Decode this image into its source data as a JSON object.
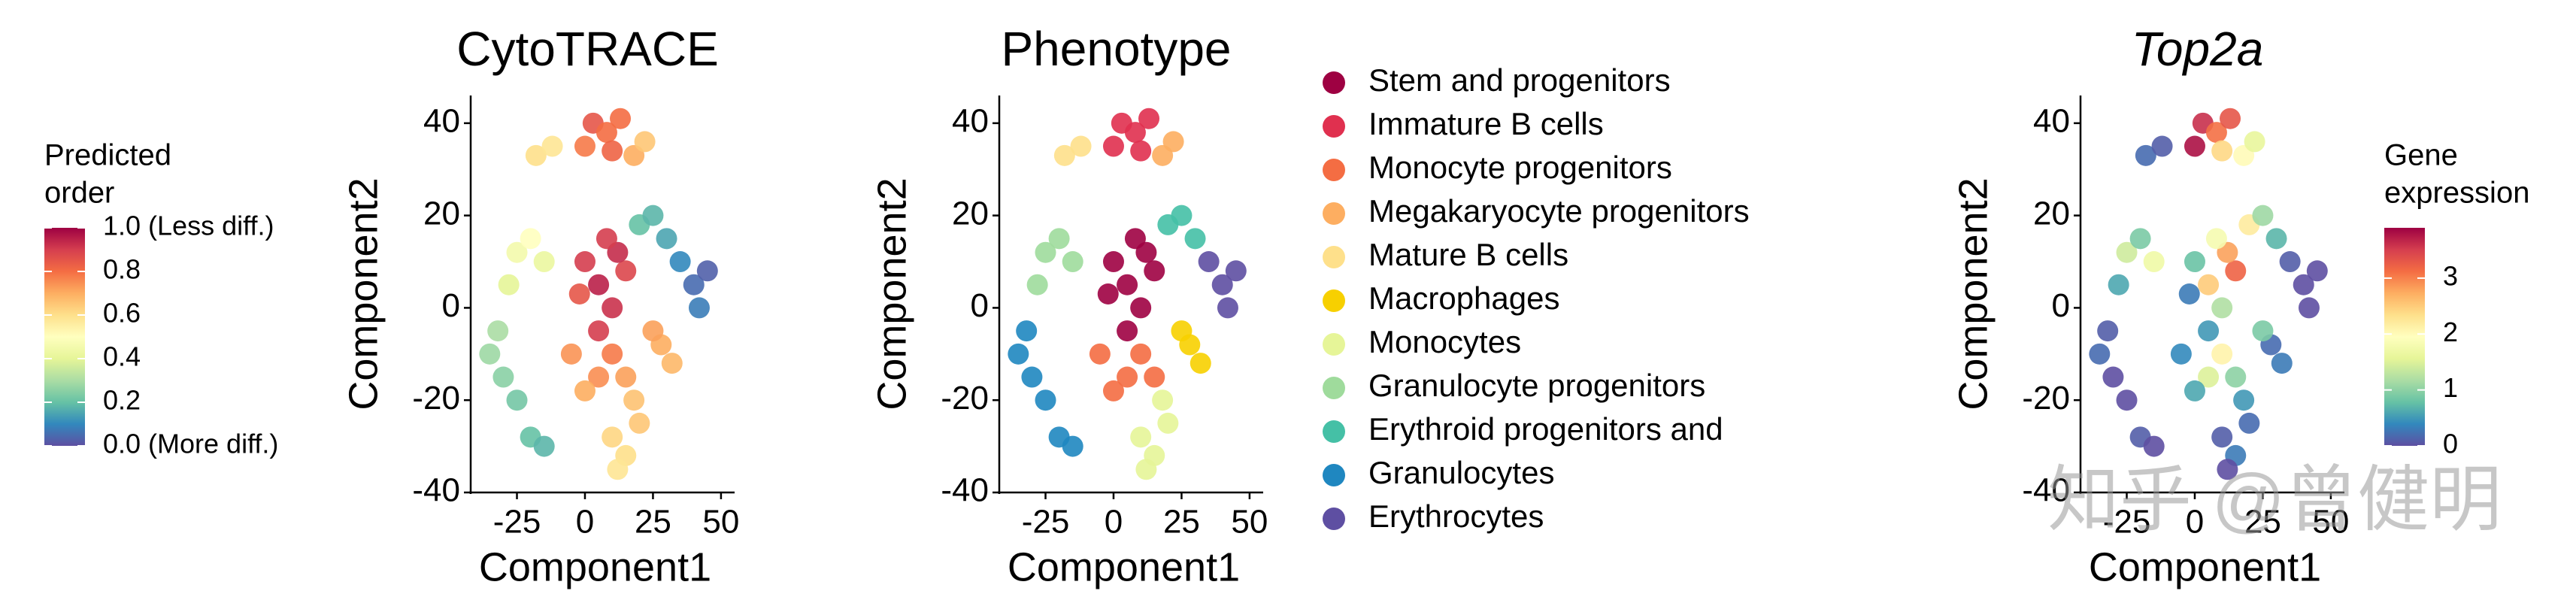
{
  "watermark": "知乎 @曾健明",
  "chart_data": [
    {
      "type": "scatter",
      "title": "CytoTRACE",
      "x_label": "Component1",
      "y_label": "Component2",
      "xlim": [
        -42,
        55
      ],
      "ylim": [
        -40,
        46
      ],
      "xticks": [
        -25,
        0,
        25,
        50
      ],
      "yticks": [
        -40,
        -20,
        0,
        20,
        40
      ],
      "x": [
        5,
        10,
        0,
        15,
        5,
        12,
        -2,
        8,
        3,
        8,
        10,
        0,
        13,
        5,
        10,
        0,
        15,
        -5,
        18,
        22,
        -18,
        -12,
        28,
        32,
        25,
        10,
        15,
        20,
        12,
        18,
        -25,
        -20,
        -15,
        -28,
        20,
        25,
        30,
        -32,
        -30,
        -25,
        -20,
        -15,
        -35,
        40,
        45,
        42,
        35
      ],
      "y": [
        5,
        0,
        10,
        8,
        -5,
        12,
        3,
        15,
        40,
        38,
        34,
        35,
        41,
        -15,
        -10,
        -18,
        -15,
        -10,
        33,
        36,
        33,
        35,
        -8,
        -12,
        -5,
        -28,
        -32,
        -25,
        -35,
        -20,
        12,
        15,
        10,
        5,
        18,
        20,
        15,
        -5,
        -15,
        -20,
        -28,
        -30,
        -10,
        5,
        8,
        0,
        10
      ],
      "values": [
        0.95,
        0.92,
        0.9,
        0.88,
        0.9,
        0.93,
        0.85,
        0.9,
        0.85,
        0.8,
        0.82,
        0.78,
        0.8,
        0.75,
        0.78,
        0.7,
        0.72,
        0.74,
        0.7,
        0.65,
        0.6,
        0.58,
        0.7,
        0.68,
        0.72,
        0.62,
        0.6,
        0.65,
        0.58,
        0.66,
        0.45,
        0.5,
        0.42,
        0.4,
        0.2,
        0.18,
        0.15,
        0.3,
        0.25,
        0.22,
        0.2,
        0.18,
        0.28,
        0.05,
        0.03,
        0.08,
        0.1
      ],
      "colormap": [
        "#5e4fa2",
        "#3288bd",
        "#66c2a5",
        "#abdda4",
        "#e6f598",
        "#ffffbf",
        "#fee08b",
        "#fdae61",
        "#f46d43",
        "#d53e4f",
        "#9e0142"
      ],
      "clim": [
        0,
        1
      ],
      "colorbar_title": [
        "Predicted",
        "order"
      ],
      "colorbar_ticks": [
        {
          "value": 1,
          "label": "1.0 (Less diff.)"
        },
        {
          "value": 0.8,
          "label": "0.8"
        },
        {
          "value": 0.6,
          "label": "0.6"
        },
        {
          "value": 0.4,
          "label": "0.4"
        },
        {
          "value": 0.2,
          "label": "0.2"
        },
        {
          "value": 0,
          "label": "0.0 (More diff.)"
        }
      ]
    },
    {
      "type": "scatter",
      "title": "Phenotype",
      "x_label": "Component1",
      "y_label": "Component2",
      "xlim": [
        -42,
        55
      ],
      "ylim": [
        -40,
        46
      ],
      "xticks": [
        -25,
        0,
        25,
        50
      ],
      "yticks": [
        -40,
        -20,
        0,
        20,
        40
      ],
      "series": [
        {
          "name": "Stem and progenitors",
          "color": "#9e0142",
          "x": [
            5,
            10,
            0,
            15,
            5,
            12,
            -2,
            8
          ],
          "y": [
            5,
            0,
            10,
            8,
            -5,
            12,
            3,
            15
          ]
        },
        {
          "name": "Immature B cells",
          "color": "#e0304f",
          "x": [
            3,
            8,
            10,
            0,
            13
          ],
          "y": [
            40,
            38,
            34,
            35,
            41
          ]
        },
        {
          "name": "Monocyte progenitors",
          "color": "#f46d43",
          "x": [
            5,
            10,
            0,
            15,
            -5
          ],
          "y": [
            -15,
            -10,
            -18,
            -15,
            -10
          ]
        },
        {
          "name": "Megakaryocyte progenitors",
          "color": "#fdae61",
          "x": [
            18,
            22
          ],
          "y": [
            33,
            36
          ]
        },
        {
          "name": "Mature B cells",
          "color": "#fee08b",
          "x": [
            -18,
            -12
          ],
          "y": [
            33,
            35
          ]
        },
        {
          "name": "Macrophages",
          "color": "#f7d000",
          "x": [
            28,
            32,
            25
          ],
          "y": [
            -8,
            -12,
            -5
          ]
        },
        {
          "name": "Monocytes",
          "color": "#e6f598",
          "x": [
            10,
            15,
            20,
            12,
            18
          ],
          "y": [
            -28,
            -32,
            -25,
            -35,
            -20
          ]
        },
        {
          "name": "Granulocyte progenitors",
          "color": "#9fdb9c",
          "x": [
            -25,
            -20,
            -15,
            -28
          ],
          "y": [
            12,
            15,
            10,
            5
          ]
        },
        {
          "name": "Erythroid progenitors and",
          "color": "#45c0a6",
          "x": [
            20,
            25,
            30
          ],
          "y": [
            18,
            20,
            15
          ]
        },
        {
          "name": "Granulocytes",
          "color": "#1f87c0",
          "x": [
            -32,
            -30,
            -25,
            -20,
            -15,
            -35
          ],
          "y": [
            -5,
            -15,
            -20,
            -28,
            -30,
            -10
          ]
        },
        {
          "name": "Erythrocytes",
          "color": "#5e4fa2",
          "x": [
            40,
            45,
            42,
            35
          ],
          "y": [
            5,
            8,
            0,
            10
          ]
        }
      ]
    },
    {
      "type": "scatter",
      "title": "Top2a",
      "x_label": "Component1",
      "y_label": "Component2",
      "xlim": [
        -42,
        55
      ],
      "ylim": [
        -40,
        46
      ],
      "xticks": [
        -25,
        0,
        25,
        50
      ],
      "yticks": [
        -40,
        -20,
        0,
        20,
        40
      ],
      "x": [
        5,
        10,
        0,
        15,
        5,
        12,
        -2,
        8,
        3,
        8,
        10,
        0,
        13,
        5,
        10,
        0,
        15,
        -5,
        18,
        22,
        -18,
        -12,
        28,
        32,
        25,
        10,
        15,
        20,
        12,
        18,
        -25,
        -20,
        -15,
        -28,
        20,
        25,
        30,
        -32,
        -30,
        -25,
        -20,
        -15,
        -35,
        40,
        45,
        42,
        35
      ],
      "y": [
        5,
        0,
        10,
        8,
        -5,
        12,
        3,
        15,
        40,
        38,
        34,
        35,
        41,
        -15,
        -10,
        -18,
        -15,
        -10,
        33,
        36,
        33,
        35,
        -8,
        -12,
        -5,
        -28,
        -32,
        -25,
        -35,
        -20,
        12,
        15,
        10,
        5,
        18,
        20,
        15,
        -5,
        -15,
        -20,
        -28,
        -30,
        -10,
        5,
        8,
        0,
        10
      ],
      "values": [
        2.5,
        1.2,
        0.8,
        3.2,
        0.5,
        2.8,
        0.3,
        1.8,
        3.6,
        3.1,
        2.4,
        3.8,
        3.3,
        1.5,
        2.1,
        0.6,
        1.0,
        0.4,
        2.0,
        1.6,
        0.2,
        0.1,
        0.2,
        0.3,
        0.9,
        0.1,
        0.3,
        0.2,
        0,
        0.5,
        1.4,
        0.9,
        1.7,
        0.6,
        2.2,
        1.1,
        0.7,
        0.1,
        0,
        0,
        0.1,
        0,
        0.2,
        0,
        0,
        0,
        0.1
      ],
      "colormap": [
        "#5e4fa2",
        "#3288bd",
        "#66c2a5",
        "#abdda4",
        "#e6f598",
        "#ffffbf",
        "#fee08b",
        "#fdae61",
        "#f46d43",
        "#d53e4f",
        "#9e0142"
      ],
      "clim": [
        0,
        3.9
      ],
      "colorbar_title": [
        "Gene",
        "expression"
      ],
      "colorbar_ticks": [
        0,
        1,
        2,
        3
      ]
    }
  ]
}
